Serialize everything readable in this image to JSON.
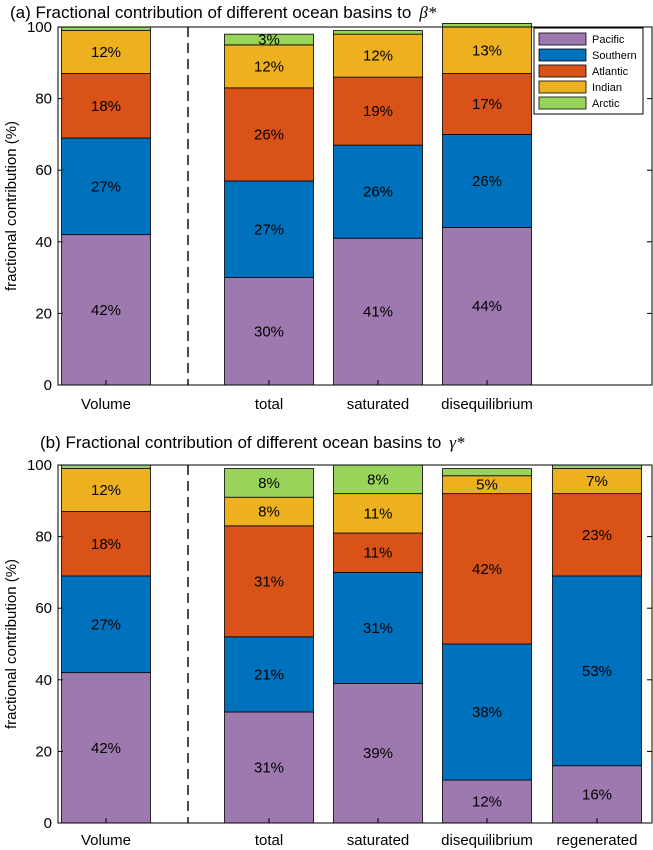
{
  "chart_data": [
    {
      "type": "bar",
      "stacked": true,
      "title": "(a) Fractional contribution of different ocean basins to",
      "title_symbol": "β*",
      "ylabel": "fractional contribution (%)",
      "ylim": [
        0,
        100
      ],
      "yticks": [
        "0",
        "20",
        "40",
        "60",
        "80",
        "100"
      ],
      "categories": [
        "Volume",
        "total",
        "saturated",
        "disequilibrium"
      ],
      "separator_after": "Volume",
      "legend": {
        "position": "top-right"
      },
      "series": [
        {
          "name": "Pacific",
          "color": "#9e79b0",
          "values": [
            42,
            30,
            41,
            44
          ],
          "labels": [
            "42%",
            "30%",
            "41%",
            "44%"
          ]
        },
        {
          "name": "Southern",
          "color": "#0072bd",
          "values": [
            27,
            27,
            26,
            26
          ],
          "labels": [
            "27%",
            "27%",
            "26%",
            "26%"
          ]
        },
        {
          "name": "Atlantic",
          "color": "#d95319",
          "values": [
            18,
            26,
            19,
            17
          ],
          "labels": [
            "18%",
            "26%",
            "19%",
            "17%"
          ]
        },
        {
          "name": "Indian",
          "color": "#edb120",
          "values": [
            12,
            12,
            12,
            13
          ],
          "labels": [
            "12%",
            "12%",
            "12%",
            "13%"
          ]
        },
        {
          "name": "Arctic",
          "color": "#99d45a",
          "values": [
            1,
            3,
            1,
            1
          ],
          "labels": [
            "",
            "3%",
            "",
            ""
          ]
        }
      ]
    },
    {
      "type": "bar",
      "stacked": true,
      "title": "(b) Fractional contribution of different ocean basins to",
      "title_symbol": "γ*",
      "ylabel": "fractional contribution (%)",
      "ylim": [
        0,
        100
      ],
      "yticks": [
        "0",
        "20",
        "40",
        "60",
        "80",
        "100"
      ],
      "categories": [
        "Volume",
        "total",
        "saturated",
        "disequilibrium",
        "regenerated"
      ],
      "separator_after": "Volume",
      "series": [
        {
          "name": "Pacific",
          "color": "#9e79b0",
          "values": [
            42,
            31,
            39,
            12,
            16
          ],
          "labels": [
            "42%",
            "31%",
            "39%",
            "12%",
            "16%"
          ]
        },
        {
          "name": "Southern",
          "color": "#0072bd",
          "values": [
            27,
            21,
            31,
            38,
            53
          ],
          "labels": [
            "27%",
            "21%",
            "31%",
            "38%",
            "53%"
          ]
        },
        {
          "name": "Atlantic",
          "color": "#d95319",
          "values": [
            18,
            31,
            11,
            42,
            23
          ],
          "labels": [
            "18%",
            "31%",
            "11%",
            "42%",
            "23%"
          ]
        },
        {
          "name": "Indian",
          "color": "#edb120",
          "values": [
            12,
            8,
            11,
            5,
            7
          ],
          "labels": [
            "12%",
            "8%",
            "11%",
            "5%",
            "7%"
          ]
        },
        {
          "name": "Arctic",
          "color": "#99d45a",
          "values": [
            1,
            8,
            8,
            2,
            1
          ],
          "labels": [
            "",
            "8%",
            "8%",
            "",
            ""
          ]
        }
      ]
    }
  ]
}
